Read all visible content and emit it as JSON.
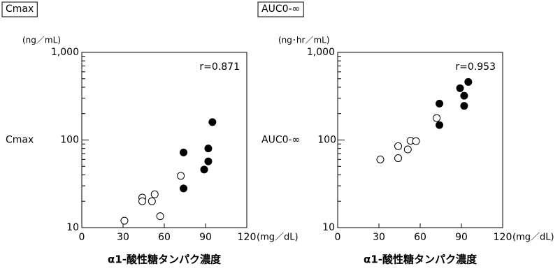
{
  "chart_data": [
    {
      "type": "scatter",
      "title": "Cmax",
      "y_unit": "(ng／mL)",
      "ylabel": "Cmax",
      "x_unit": "(mg／dL)",
      "xlabel": "α1-酸性糖タンパク濃度",
      "annotation": "r=0.871",
      "log_y": true,
      "xlim": [
        0,
        120
      ],
      "xticks": [
        0,
        30,
        60,
        90,
        120
      ],
      "ylim": [
        10,
        1000
      ],
      "yticks": [
        10,
        100,
        {
          "value": 1000,
          "label": "1,000"
        }
      ],
      "series": [
        {
          "color": "#000000",
          "filled": false,
          "x": [
            31,
            44,
            44,
            51,
            53,
            57,
            72
          ],
          "values": [
            12,
            22,
            20,
            20,
            24,
            13.5,
            39
          ]
        },
        {
          "color": "#000000",
          "filled": true,
          "x": [
            74,
            74,
            89,
            92,
            92,
            95
          ],
          "values": [
            72,
            28,
            46,
            57,
            80,
            160
          ]
        }
      ]
    },
    {
      "type": "scatter",
      "title": "AUC0-∞",
      "y_unit": "(ng･hr／mL)",
      "ylabel": "AUC0-∞",
      "x_unit": "(mg／dL)",
      "xlabel": "α1-酸性糖タンパク濃度",
      "annotation": "r=0.953",
      "log_y": true,
      "xlim": [
        0,
        120
      ],
      "xticks": [
        0,
        30,
        60,
        90,
        120
      ],
      "ylim": [
        10,
        1000
      ],
      "yticks": [
        10,
        100,
        {
          "value": 1000,
          "label": "1,000"
        }
      ],
      "series": [
        {
          "color": "#000000",
          "filled": false,
          "x": [
            31,
            44,
            44,
            51,
            53,
            57,
            72
          ],
          "values": [
            60,
            85,
            62,
            78,
            98,
            97,
            178
          ]
        },
        {
          "color": "#000000",
          "filled": true,
          "x": [
            74,
            74,
            89,
            92,
            92,
            95
          ],
          "values": [
            260,
            148,
            390,
            320,
            245,
            460
          ]
        }
      ]
    }
  ]
}
